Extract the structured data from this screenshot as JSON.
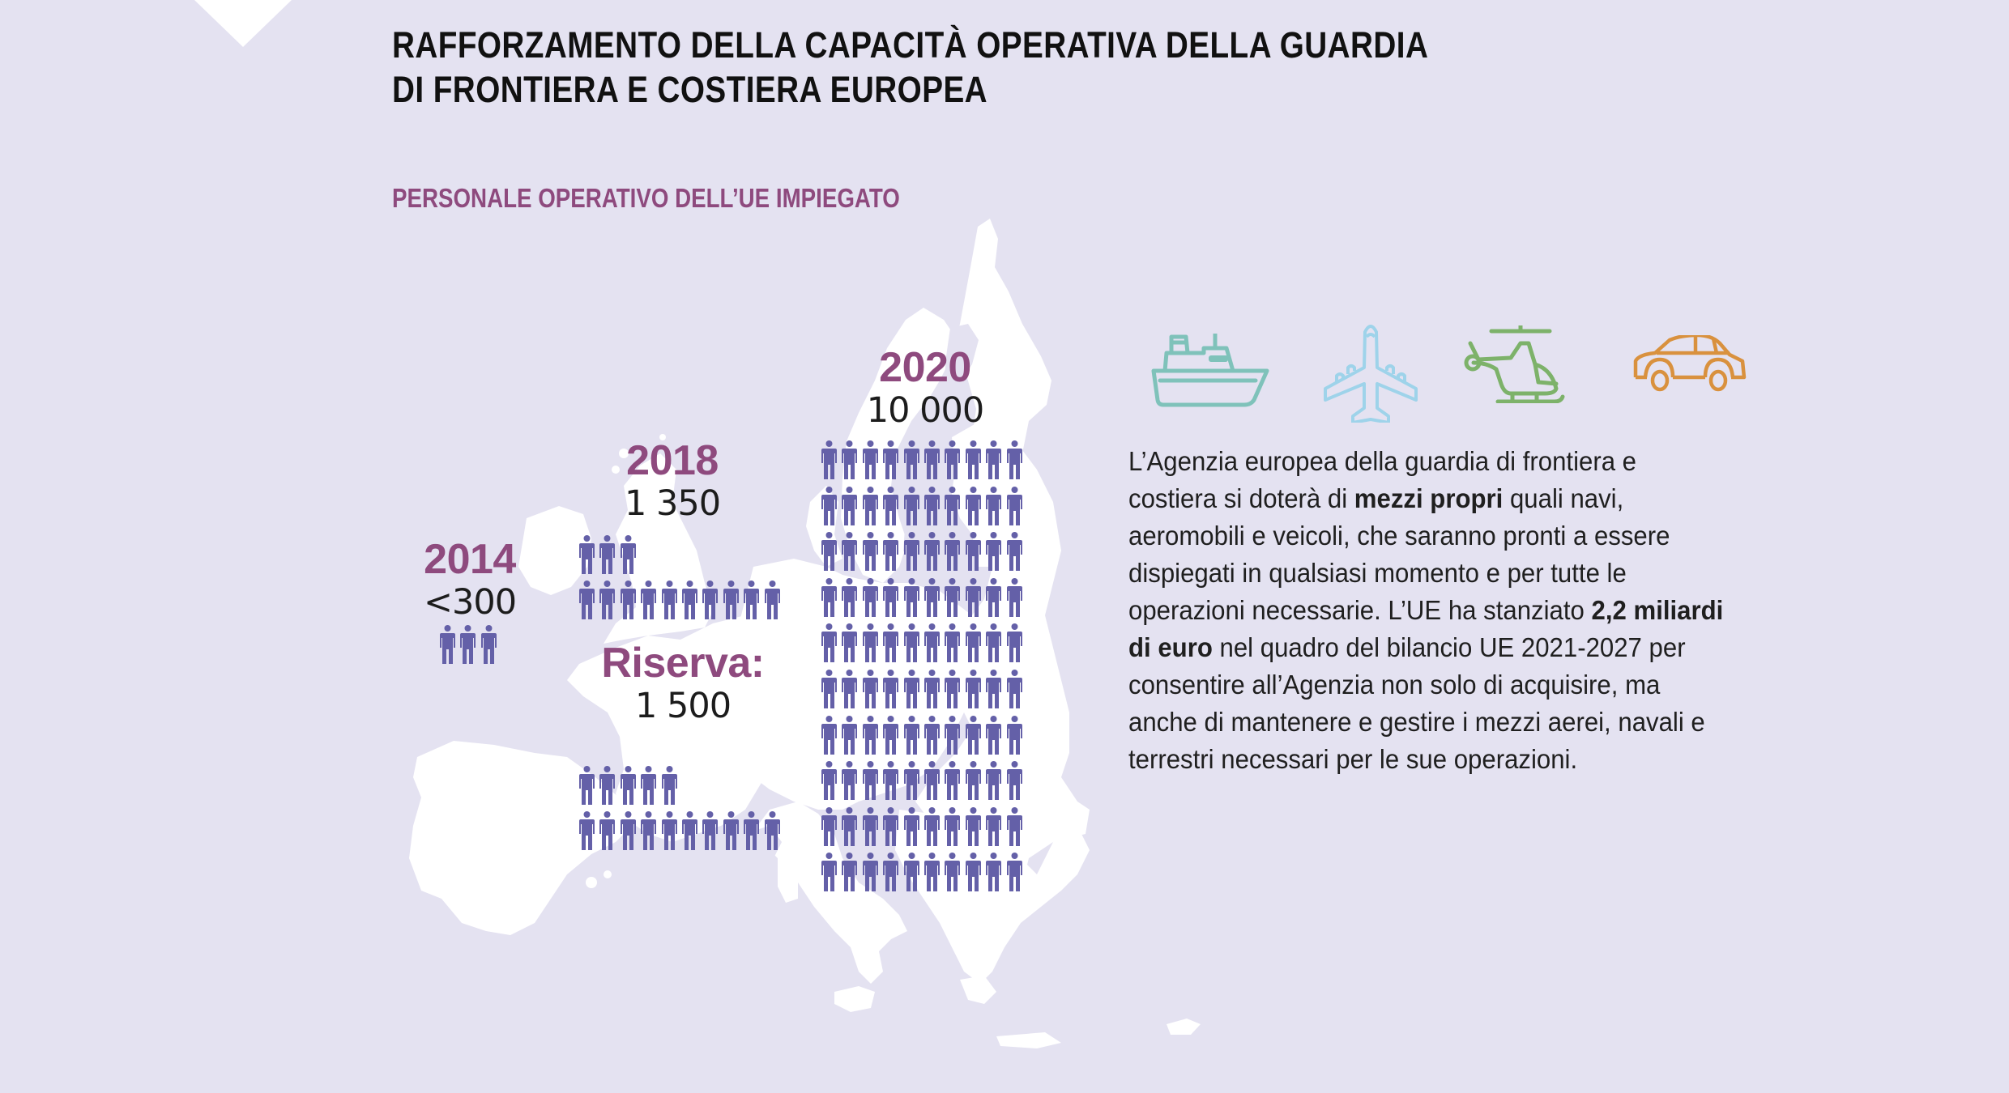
{
  "title": {
    "line1": "RAFFORZAMENTO DELLA CAPACITÀ OPERATIVA DELLA GUARDIA",
    "line2": "DI FRONTIERA E COSTIERA EUROPEA"
  },
  "subtitle": "PERSONALE OPERATIVO DELL’UE IMPIEGATO",
  "colors": {
    "background": "#E4E2F1",
    "map_land": "#FFFFFF",
    "accent_year": "#8E4A7E",
    "person_icon": "#6460A8",
    "ship_icon": "#7FC2BA",
    "plane_icon": "#9ED3EA",
    "helicopter_icon": "#7DB26A",
    "car_icon": "#D9913E",
    "text": "#1F1F1F"
  },
  "groups": [
    {
      "id": "2014",
      "year": "2014",
      "count": "<300",
      "icons": 3,
      "rows": [
        3
      ]
    },
    {
      "id": "2018",
      "year": "2018",
      "count": "1 350",
      "icons": 13,
      "rows": [
        3,
        10
      ]
    },
    {
      "id": "riserva",
      "year": "Riserva:",
      "count": "1 500",
      "icons": 15,
      "rows": [
        5,
        10
      ]
    },
    {
      "id": "2020",
      "year": "2020",
      "count": "10 000",
      "icons": 100,
      "rows": [
        10,
        10,
        10,
        10,
        10,
        10,
        10,
        10,
        10,
        10
      ]
    }
  ],
  "vehicles": [
    {
      "name": "ship-icon",
      "label": "navi"
    },
    {
      "name": "airplane-icon",
      "label": "aeromobili"
    },
    {
      "name": "helicopter-icon",
      "label": "elicotteri"
    },
    {
      "name": "car-icon",
      "label": "veicoli"
    }
  ],
  "paragraph": {
    "p1": "L’Agenzia europea della guardia di frontiera e costiera si doterà di ",
    "b1": "mezzi propri",
    "p2": " quali navi, aeromobili e veicoli, che saranno pronti a essere dispiegati in qualsiasi momento e per tutte le operazioni necessarie. L’UE ha stanziato ",
    "b2": "2,2 miliardi di euro",
    "p3": " nel quadro del bilancio UE 2021-2027 per consentire all’Agenzia non solo di acquisire, ma anche di mantenere e gestire i mezzi aerei, navali e terrestri necessari per le sue operazioni."
  },
  "chart_data": {
    "type": "pictogram",
    "title": "PERSONALE OPERATIVO DELL’UE IMPIEGATO",
    "categories": [
      "2014",
      "2018",
      "Riserva",
      "2020"
    ],
    "values": [
      300,
      1350,
      1500,
      10000
    ],
    "value_labels": [
      "<300",
      "1 350",
      "1 500",
      "10 000"
    ],
    "icon_counts": [
      3,
      13,
      15,
      100
    ],
    "unit_per_icon": 100
  }
}
